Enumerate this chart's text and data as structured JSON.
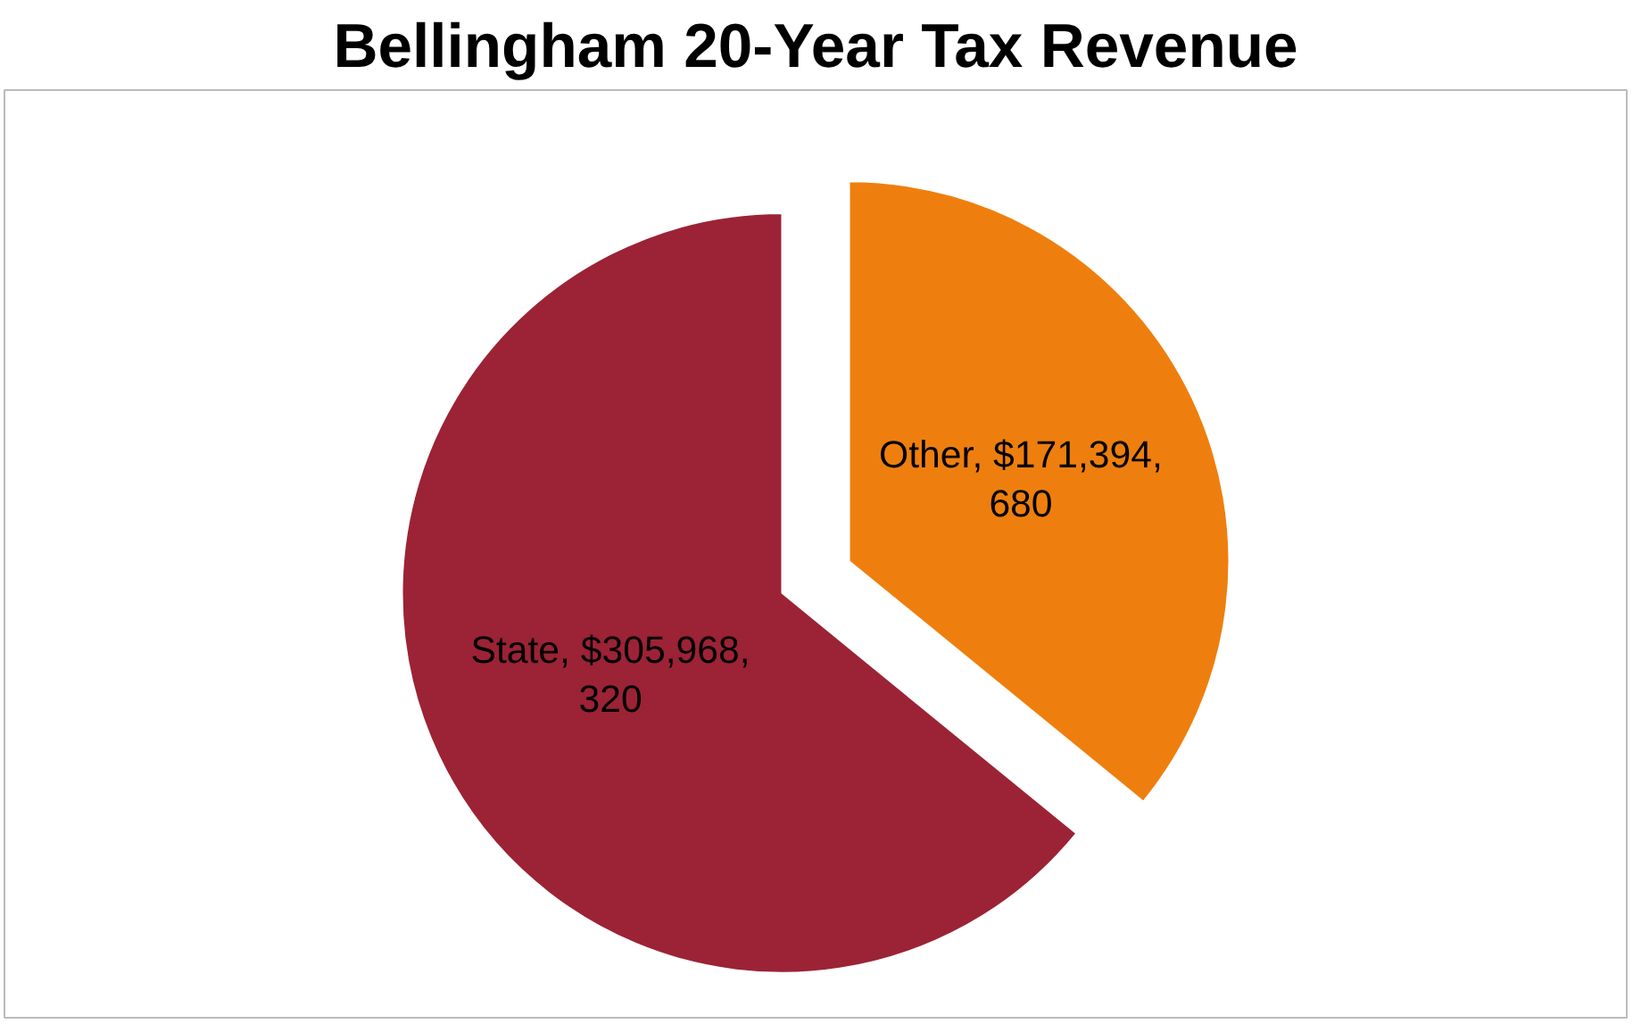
{
  "chart_data": {
    "type": "pie",
    "title": "Bellingham 20-Year Tax Revenue",
    "categories": [
      "Other",
      "State"
    ],
    "values": [
      171394680,
      305968320
    ],
    "colors": [
      "#ee7f0e",
      "#9b2335"
    ],
    "value_labels": [
      "$171,394,680",
      "$305,968,320"
    ]
  }
}
